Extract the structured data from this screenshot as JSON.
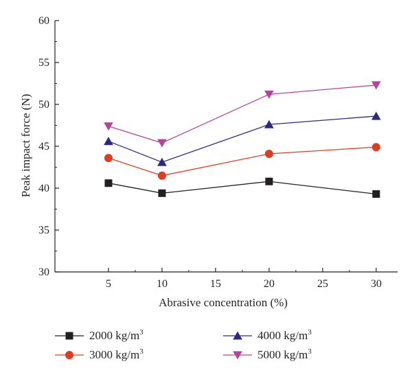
{
  "chart_data": {
    "type": "line",
    "title": "",
    "xlabel": "Abrasive concentration (%)",
    "ylabel": "Peak impact force (N)",
    "xlim": [
      0,
      32
    ],
    "ylim": [
      30,
      60
    ],
    "xticks": [
      5,
      10,
      15,
      20,
      25,
      30
    ],
    "yticks": [
      30,
      35,
      40,
      45,
      50,
      55,
      60
    ],
    "x": [
      5,
      10,
      20,
      30
    ],
    "grid": false,
    "legend_position": "bottom",
    "series": [
      {
        "name": "2000 kg/m",
        "unit_sup": "3",
        "marker": "square",
        "color": "#231f20",
        "values": [
          40.6,
          39.4,
          40.8,
          39.3
        ]
      },
      {
        "name": "3000 kg/m",
        "unit_sup": "3",
        "marker": "circle",
        "color": "#e03c1f",
        "values": [
          43.6,
          41.5,
          44.1,
          44.9
        ]
      },
      {
        "name": "4000 kg/m",
        "unit_sup": "3",
        "marker": "triangle-up",
        "color": "#2e2883",
        "values": [
          45.6,
          43.1,
          47.6,
          48.6
        ]
      },
      {
        "name": "5000 kg/m",
        "unit_sup": "3",
        "marker": "triangle-down",
        "color": "#b2459b",
        "values": [
          47.4,
          45.4,
          51.2,
          52.3
        ]
      }
    ]
  }
}
